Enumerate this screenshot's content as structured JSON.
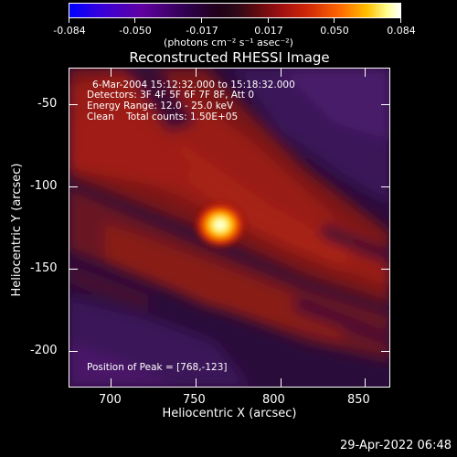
{
  "colorbar": {
    "tick_labels": [
      "-0.084",
      "-0.050",
      "-0.017",
      "0.017",
      "0.050",
      "0.084"
    ],
    "units": "(photons cm⁻² s⁻¹ asec⁻²)"
  },
  "title": "Reconstructed RHESSI Image",
  "info": {
    "time": "6-Mar-2004 15:12:32.000 to 15:18:32.000",
    "detectors": "Detectors: 3F 4F 5F 6F 7F 8F, Att 0",
    "energy": "Energy Range: 12.0 - 25.0 keV",
    "method": "Clean    Total counts: 1.50E+05",
    "peak": "Position of Peak = [768,-123]"
  },
  "axes": {
    "xlabel": "Heliocentric X (arcsec)",
    "ylabel": "Heliocentric Y (arcsec)",
    "x_tick_labels": [
      "700",
      "750",
      "800",
      "850"
    ],
    "y_tick_labels": [
      "-50",
      "-100",
      "-150",
      "-200"
    ],
    "xlim": [
      677,
      867
    ],
    "ylim": [
      -220,
      -35
    ]
  },
  "timestamp": "29-Apr-2022 06:48",
  "colors": {
    "background": "#000000",
    "colormap": [
      "#0000ff",
      "#6000a0",
      "#200020",
      "#3a0a22",
      "#a01010",
      "#e04000",
      "#ff9a00",
      "#ffff80",
      "#ffffff"
    ]
  }
}
